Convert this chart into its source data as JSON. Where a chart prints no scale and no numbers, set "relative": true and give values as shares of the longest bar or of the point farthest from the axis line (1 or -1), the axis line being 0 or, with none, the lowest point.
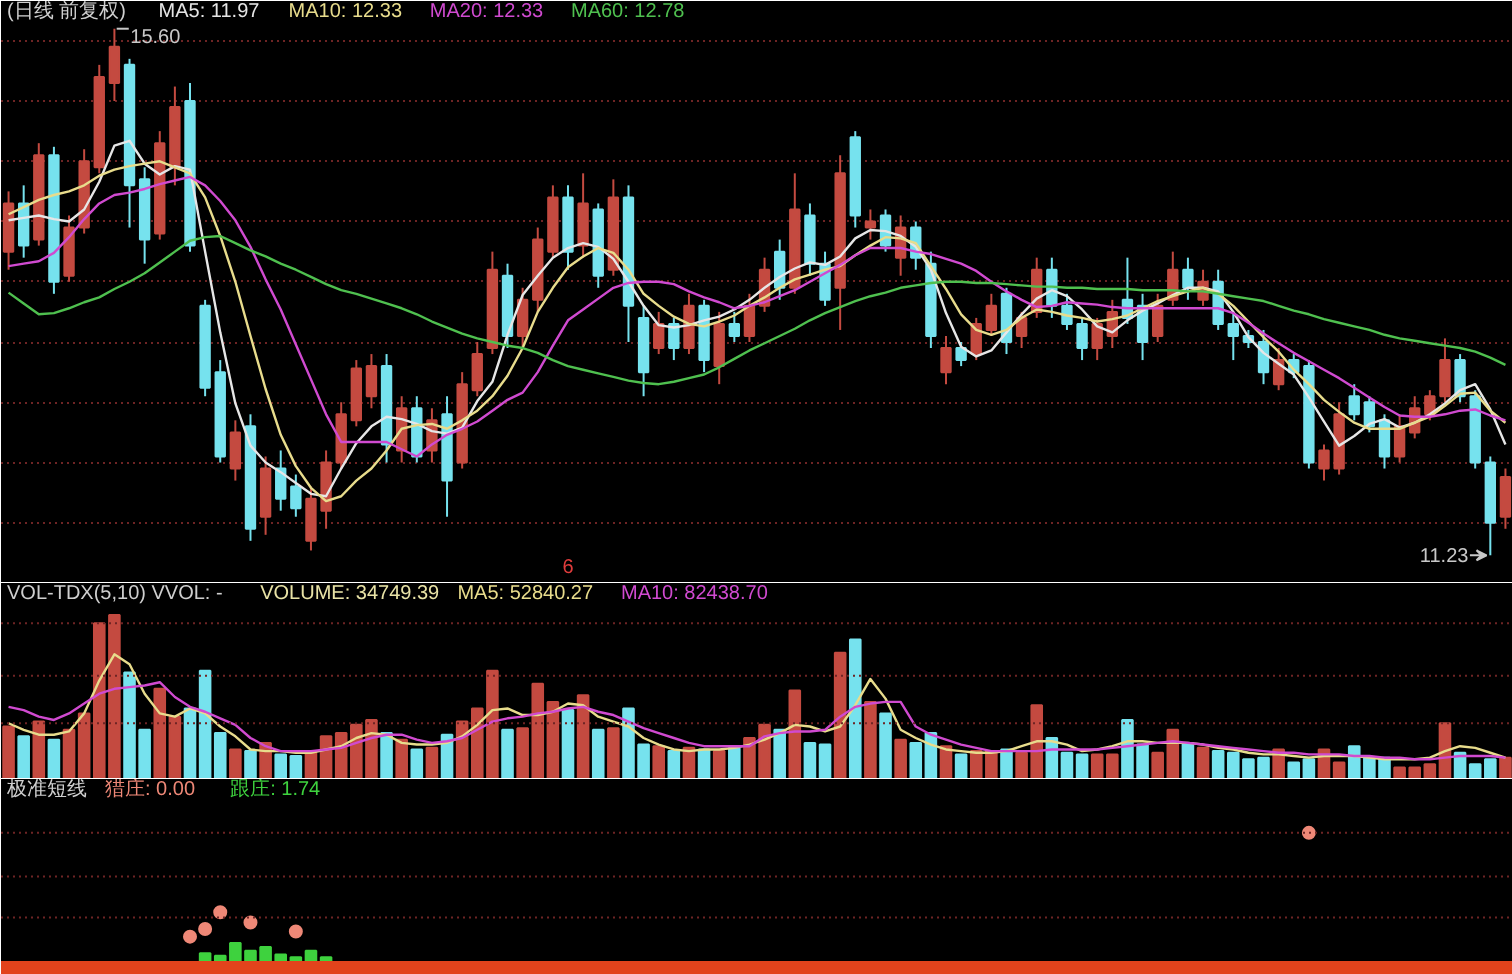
{
  "chart_data": [
    {
      "type": "candlestick",
      "title": "(日线 前复权)",
      "legend": "top left",
      "grid": "y",
      "tick_labels": "x",
      "categories": [
        null,
        null,
        null,
        null,
        null,
        null,
        null,
        null,
        null,
        null,
        null,
        null,
        null,
        null,
        null,
        null,
        null,
        null,
        null,
        null,
        null,
        null,
        null,
        null,
        null,
        null,
        null,
        null,
        null,
        null,
        null,
        null,
        null,
        null,
        null,
        null,
        null,
        "6",
        null,
        null,
        null,
        null,
        null,
        null,
        null,
        null,
        null,
        null,
        null,
        null,
        null,
        null,
        null,
        null,
        null,
        null,
        null,
        null,
        null,
        null,
        null,
        null,
        null,
        null,
        null,
        null,
        null,
        null,
        null,
        null,
        null,
        null,
        null,
        null,
        null,
        null,
        null,
        null,
        null,
        null,
        null,
        null,
        null,
        null,
        null,
        null,
        null,
        null,
        null,
        null,
        null,
        null,
        null,
        null,
        null,
        null,
        null,
        null,
        null,
        null
      ],
      "ohlc": [
        [
          13.75,
          14.25,
          13.6,
          14.15
        ],
        [
          14.15,
          14.3,
          13.7,
          13.8
        ],
        [
          13.85,
          14.65,
          13.8,
          14.55
        ],
        [
          14.55,
          14.62,
          13.4,
          13.5
        ],
        [
          13.55,
          14.05,
          13.5,
          13.95
        ],
        [
          13.95,
          14.6,
          13.9,
          14.5
        ],
        [
          14.45,
          15.3,
          14.4,
          15.2
        ],
        [
          15.15,
          15.6,
          15.0,
          15.45
        ],
        [
          15.3,
          15.35,
          13.95,
          14.3
        ],
        [
          14.35,
          14.45,
          13.65,
          13.85
        ],
        [
          13.9,
          14.75,
          13.85,
          14.65
        ],
        [
          14.45,
          15.12,
          14.3,
          14.95
        ],
        [
          15.0,
          15.15,
          13.75,
          13.8
        ],
        [
          13.3,
          13.35,
          12.55,
          12.62
        ],
        [
          12.75,
          12.85,
          12.0,
          12.05
        ],
        [
          11.95,
          12.35,
          11.85,
          12.25
        ],
        [
          12.3,
          12.4,
          11.35,
          11.45
        ],
        [
          11.55,
          12.05,
          11.4,
          11.95
        ],
        [
          11.95,
          12.1,
          11.6,
          11.7
        ],
        [
          11.8,
          11.9,
          11.55,
          11.62
        ],
        [
          11.35,
          11.8,
          11.27,
          11.7
        ],
        [
          11.6,
          12.1,
          11.45,
          12.0
        ],
        [
          12.0,
          12.5,
          11.95,
          12.4
        ],
        [
          12.35,
          12.85,
          12.3,
          12.78
        ],
        [
          12.55,
          12.9,
          12.45,
          12.8
        ],
        [
          12.8,
          12.9,
          12.0,
          12.15
        ],
        [
          12.1,
          12.55,
          12.0,
          12.45
        ],
        [
          12.45,
          12.55,
          12.0,
          12.05
        ],
        [
          12.1,
          12.45,
          12.0,
          12.35
        ],
        [
          12.4,
          12.55,
          11.55,
          11.85
        ],
        [
          12.0,
          12.75,
          11.95,
          12.65
        ],
        [
          12.6,
          13.0,
          12.55,
          12.9
        ],
        [
          12.95,
          13.75,
          12.9,
          13.6
        ],
        [
          13.55,
          13.65,
          12.95,
          13.05
        ],
        [
          13.05,
          13.45,
          12.95,
          13.35
        ],
        [
          13.35,
          13.95,
          13.25,
          13.85
        ],
        [
          13.75,
          14.3,
          13.7,
          14.2
        ],
        [
          14.2,
          14.3,
          13.6,
          13.75
        ],
        [
          13.8,
          14.4,
          13.7,
          14.15
        ],
        [
          14.1,
          14.15,
          13.45,
          13.55
        ],
        [
          13.6,
          14.35,
          13.55,
          14.2
        ],
        [
          14.2,
          14.3,
          13.0,
          13.3
        ],
        [
          13.2,
          13.3,
          12.55,
          12.75
        ],
        [
          12.95,
          13.25,
          12.9,
          13.15
        ],
        [
          13.15,
          13.2,
          12.85,
          12.95
        ],
        [
          12.95,
          13.4,
          12.9,
          13.3
        ],
        [
          13.3,
          13.35,
          12.75,
          12.85
        ],
        [
          12.8,
          13.25,
          12.65,
          13.15
        ],
        [
          13.15,
          13.25,
          13.0,
          13.05
        ],
        [
          13.05,
          13.4,
          13.0,
          13.3
        ],
        [
          13.3,
          13.7,
          13.25,
          13.6
        ],
        [
          13.75,
          13.85,
          13.35,
          13.45
        ],
        [
          13.45,
          14.4,
          13.4,
          14.1
        ],
        [
          14.05,
          14.15,
          13.55,
          13.65
        ],
        [
          13.65,
          13.75,
          13.3,
          13.35
        ],
        [
          13.45,
          14.55,
          13.1,
          14.4
        ],
        [
          14.7,
          14.75,
          13.95,
          14.05
        ],
        [
          13.95,
          14.1,
          13.85,
          14.0
        ],
        [
          14.05,
          14.1,
          13.75,
          13.8
        ],
        [
          13.7,
          14.05,
          13.55,
          13.95
        ],
        [
          13.95,
          14.0,
          13.6,
          13.7
        ],
        [
          13.65,
          13.75,
          12.95,
          13.05
        ],
        [
          12.75,
          13.05,
          12.65,
          12.95
        ],
        [
          12.95,
          13.0,
          12.8,
          12.85
        ],
        [
          12.9,
          13.2,
          12.85,
          13.15
        ],
        [
          13.1,
          13.4,
          13.05,
          13.3
        ],
        [
          13.4,
          13.45,
          12.9,
          13.0
        ],
        [
          13.05,
          13.25,
          12.95,
          13.2
        ],
        [
          13.25,
          13.7,
          13.2,
          13.6
        ],
        [
          13.6,
          13.7,
          13.2,
          13.3
        ],
        [
          13.3,
          13.4,
          13.1,
          13.15
        ],
        [
          13.15,
          13.2,
          12.85,
          12.95
        ],
        [
          12.95,
          13.2,
          12.85,
          13.15
        ],
        [
          13.05,
          13.35,
          12.95,
          13.25
        ],
        [
          13.35,
          13.7,
          13.15,
          13.2
        ],
        [
          13.3,
          13.4,
          12.85,
          13.0
        ],
        [
          13.05,
          13.4,
          13.0,
          13.3
        ],
        [
          13.35,
          13.75,
          13.3,
          13.6
        ],
        [
          13.6,
          13.7,
          13.35,
          13.45
        ],
        [
          13.35,
          13.6,
          13.3,
          13.5
        ],
        [
          13.5,
          13.6,
          13.1,
          13.15
        ],
        [
          13.15,
          13.25,
          12.85,
          13.05
        ],
        [
          13.05,
          13.1,
          12.95,
          13.0
        ],
        [
          13.0,
          13.1,
          12.65,
          12.75
        ],
        [
          12.65,
          12.95,
          12.6,
          12.85
        ],
        [
          12.85,
          12.9,
          12.7,
          12.75
        ],
        [
          12.8,
          12.85,
          11.95,
          12.0
        ],
        [
          11.95,
          12.15,
          11.85,
          12.1
        ],
        [
          11.95,
          12.5,
          11.9,
          12.4
        ],
        [
          12.55,
          12.65,
          12.35,
          12.4
        ],
        [
          12.5,
          12.55,
          12.25,
          12.3
        ],
        [
          12.35,
          12.4,
          11.95,
          12.05
        ],
        [
          12.05,
          12.4,
          12.0,
          12.3
        ],
        [
          12.25,
          12.55,
          12.2,
          12.45
        ],
        [
          12.4,
          12.6,
          12.35,
          12.55
        ],
        [
          12.55,
          13.03,
          12.5,
          12.85
        ],
        [
          12.85,
          12.9,
          12.5,
          12.55
        ],
        [
          12.55,
          12.6,
          11.95,
          12.0
        ],
        [
          12.0,
          12.05,
          11.23,
          11.5
        ],
        [
          11.55,
          11.95,
          11.45,
          11.88
        ]
      ],
      "colors": [
        "#c44a40",
        "#76e2ee",
        "#c44a40",
        "#76e2ee",
        "#c44a40",
        "#c44a40",
        "#c44a40",
        "#c44a40",
        "#76e2ee",
        "#76e2ee",
        "#c44a40",
        "#c44a40",
        "#76e2ee",
        "#76e2ee",
        "#76e2ee",
        "#c44a40",
        "#76e2ee",
        "#c44a40",
        "#76e2ee",
        "#76e2ee",
        "#c44a40",
        "#c44a40",
        "#c44a40",
        "#c44a40",
        "#c44a40",
        "#76e2ee",
        "#c44a40",
        "#76e2ee",
        "#c44a40",
        "#76e2ee",
        "#c44a40",
        "#c44a40",
        "#c44a40",
        "#76e2ee",
        "#c44a40",
        "#c44a40",
        "#c44a40",
        "#76e2ee",
        "#c44a40",
        "#76e2ee",
        "#c44a40",
        "#76e2ee",
        "#76e2ee",
        "#c44a40",
        "#76e2ee",
        "#c44a40",
        "#76e2ee",
        "#c44a40",
        "#76e2ee",
        "#c44a40",
        "#c44a40",
        "#76e2ee",
        "#c44a40",
        "#76e2ee",
        "#76e2ee",
        "#c44a40",
        "#76e2ee",
        "#c44a40",
        "#76e2ee",
        "#c44a40",
        "#76e2ee",
        "#76e2ee",
        "#c44a40",
        "#76e2ee",
        "#c44a40",
        "#c44a40",
        "#76e2ee",
        "#c44a40",
        "#c44a40",
        "#76e2ee",
        "#76e2ee",
        "#76e2ee",
        "#c44a40",
        "#c44a40",
        "#76e2ee",
        "#76e2ee",
        "#c44a40",
        "#c44a40",
        "#76e2ee",
        "#c44a40",
        "#76e2ee",
        "#76e2ee",
        "#76e2ee",
        "#76e2ee",
        "#c44a40",
        "#76e2ee",
        "#76e2ee",
        "#c44a40",
        "#c44a40",
        "#76e2ee",
        "#76e2ee",
        "#76e2ee",
        "#c44a40",
        "#c44a40",
        "#c44a40",
        "#c44a40",
        "#76e2ee",
        "#76e2ee",
        "#76e2ee",
        "#c44a40"
      ],
      "series": [
        {
          "name": "MA5: 11.97",
          "type": "line",
          "color": "#e6e6e6",
          "values": [
            14.01,
            14.03,
            14.05,
            14.02,
            14.0,
            14.1,
            14.33,
            14.63,
            14.67,
            14.48,
            14.39,
            14.46,
            14.43,
            13.75,
            13.08,
            12.49,
            12.14,
            12.0,
            11.92,
            11.83,
            11.74,
            11.72,
            11.95,
            12.16,
            12.3,
            12.38,
            12.36,
            12.32,
            12.26,
            12.24,
            12.29,
            12.51,
            12.67,
            13.06,
            13.39,
            13.55,
            13.7,
            13.78,
            13.82,
            13.79,
            13.69,
            13.5,
            13.3,
            13.14,
            13.12,
            13.14,
            13.18,
            13.21,
            13.27,
            13.35,
            13.45,
            13.54,
            13.61,
            13.66,
            13.64,
            13.71,
            13.86,
            13.93,
            13.92,
            13.88,
            13.79,
            13.6,
            13.24,
            12.96,
            12.88,
            12.93,
            13.08,
            13.23,
            13.36,
            13.43,
            13.38,
            13.27,
            13.13,
            13.08,
            13.18,
            13.26,
            13.32,
            13.39,
            13.45,
            13.45,
            13.42,
            13.25,
            13.04,
            12.91,
            12.82,
            12.73,
            12.54,
            12.34,
            12.14,
            12.22,
            12.32,
            12.36,
            12.29,
            12.33,
            12.4,
            12.49,
            12.6,
            12.65,
            12.44,
            12.15
          ]
        },
        {
          "name": "MA10: 12.33",
          "type": "line",
          "color": "#e8dc8c",
          "values": [
            14.06,
            14.12,
            14.18,
            14.22,
            14.25,
            14.3,
            14.38,
            14.43,
            14.46,
            14.48,
            14.5,
            14.45,
            14.4,
            14.2,
            13.88,
            13.5,
            13.05,
            12.61,
            12.23,
            11.97,
            11.79,
            11.68,
            11.72,
            11.85,
            11.95,
            12.1,
            12.28,
            12.31,
            12.32,
            12.28,
            12.35,
            12.43,
            12.55,
            12.72,
            12.95,
            13.25,
            13.45,
            13.62,
            13.71,
            13.78,
            13.74,
            13.6,
            13.4,
            13.3,
            13.21,
            13.15,
            13.13,
            13.17,
            13.22,
            13.3,
            13.37,
            13.45,
            13.52,
            13.56,
            13.6,
            13.63,
            13.72,
            13.8,
            13.87,
            13.86,
            13.82,
            13.63,
            13.44,
            13.23,
            13.1,
            13.06,
            13.1,
            13.2,
            13.27,
            13.25,
            13.22,
            13.2,
            13.17,
            13.19,
            13.22,
            13.28,
            13.34,
            13.38,
            13.42,
            13.45,
            13.4,
            13.3,
            13.17,
            13.04,
            12.92,
            12.77,
            12.65,
            12.52,
            12.42,
            12.33,
            12.28,
            12.28,
            12.28,
            12.33,
            12.38,
            12.47,
            12.57,
            12.58,
            12.43,
            12.33
          ]
        },
        {
          "name": "MA20: 12.33",
          "type": "line",
          "color": "#d04ad0",
          "values": [
            13.63,
            13.65,
            13.67,
            13.74,
            13.87,
            14.02,
            14.15,
            14.22,
            14.24,
            14.27,
            14.31,
            14.34,
            14.37,
            14.3,
            14.17,
            14.01,
            13.79,
            13.52,
            13.27,
            12.98,
            12.69,
            12.4,
            12.17,
            12.17,
            12.17,
            12.17,
            12.11,
            12.05,
            12.15,
            12.23,
            12.28,
            12.34,
            12.43,
            12.52,
            12.58,
            12.75,
            12.97,
            13.18,
            13.27,
            13.36,
            13.45,
            13.49,
            13.5,
            13.5,
            13.48,
            13.42,
            13.37,
            13.33,
            13.28,
            13.3,
            13.33,
            13.38,
            13.43,
            13.5,
            13.57,
            13.64,
            13.72,
            13.78,
            13.78,
            13.78,
            13.75,
            13.73,
            13.69,
            13.65,
            13.59,
            13.5,
            13.42,
            13.35,
            13.29,
            13.3,
            13.33,
            13.32,
            13.31,
            13.29,
            13.28,
            13.28,
            13.28,
            13.28,
            13.28,
            13.28,
            13.28,
            13.24,
            13.16,
            13.07,
            12.99,
            12.91,
            12.84,
            12.77,
            12.7,
            12.62,
            12.54,
            12.46,
            12.39,
            12.38,
            12.38,
            12.4,
            12.43,
            12.44,
            12.39,
            12.35
          ]
        },
        {
          "name": "MA60: 12.78",
          "type": "line",
          "color": "#4fc04f",
          "values": [
            13.41,
            13.32,
            13.23,
            13.24,
            13.28,
            13.33,
            13.37,
            13.44,
            13.5,
            13.57,
            13.66,
            13.75,
            13.84,
            13.87,
            13.88,
            13.82,
            13.76,
            13.71,
            13.65,
            13.6,
            13.54,
            13.48,
            13.43,
            13.4,
            13.36,
            13.32,
            13.28,
            13.23,
            13.17,
            13.12,
            13.07,
            13.03,
            13.0,
            12.97,
            12.95,
            12.91,
            12.85,
            12.8,
            12.77,
            12.74,
            12.71,
            12.68,
            12.66,
            12.65,
            12.67,
            12.7,
            12.73,
            12.79,
            12.86,
            12.93,
            12.99,
            13.05,
            13.11,
            13.18,
            13.24,
            13.29,
            13.34,
            13.38,
            13.41,
            13.45,
            13.47,
            13.49,
            13.5,
            13.5,
            13.49,
            13.49,
            13.48,
            13.47,
            13.46,
            13.46,
            13.45,
            13.45,
            13.44,
            13.44,
            13.44,
            13.43,
            13.43,
            13.43,
            13.42,
            13.42,
            13.4,
            13.38,
            13.36,
            13.34,
            13.3,
            13.26,
            13.23,
            13.19,
            13.16,
            13.13,
            13.1,
            13.06,
            13.03,
            13.01,
            12.99,
            12.97,
            12.95,
            12.92,
            12.87,
            12.81
          ]
        }
      ],
      "ylim": [
        11.0,
        15.83
      ],
      "yticks": [
        {
          "value": 11.5,
          "label": null
        },
        {
          "value": 12.0,
          "label": null
        },
        {
          "value": 12.5,
          "label": null
        },
        {
          "value": 13.0,
          "label": null
        },
        {
          "value": 13.5,
          "label": null
        },
        {
          "value": 14.0,
          "label": null
        },
        {
          "value": 14.5,
          "label": null
        },
        {
          "value": 15.0,
          "label": null
        },
        {
          "value": 15.5,
          "label": null
        }
      ],
      "annotations": [
        "15.60",
        "11.23"
      ]
    },
    {
      "type": "bar",
      "title": "VOL-TDX(5,10) VVOL: -",
      "legend": "top left",
      "tick_labels": false,
      "relative": true,
      "annotations": [
        "VOLUME: 34749.39"
      ],
      "ref_lines": [
        {
          "axis": "y",
          "value": 0.34,
          "label": null,
          "color": "#6e2424",
          "line_style": "dotted"
        },
        {
          "axis": "y",
          "value": 0.63,
          "label": null,
          "color": "#6e2424",
          "line_style": "dotted"
        },
        {
          "axis": "y",
          "value": 0.95,
          "label": null,
          "color": "#6e2424",
          "line_style": "dotted"
        }
      ],
      "categories": [
        null,
        null,
        null,
        null,
        null,
        null,
        null,
        null,
        null,
        null,
        null,
        null,
        null,
        null,
        null,
        null,
        null,
        null,
        null,
        null,
        null,
        null,
        null,
        null,
        null,
        null,
        null,
        null,
        null,
        null,
        null,
        null,
        null,
        null,
        null,
        null,
        null,
        null,
        null,
        null,
        null,
        null,
        null,
        null,
        null,
        null,
        null,
        null,
        null,
        null,
        null,
        null,
        null,
        null,
        null,
        null,
        null,
        null,
        null,
        null,
        null,
        null,
        null,
        null,
        null,
        null,
        null,
        null,
        null,
        null,
        null,
        null,
        null,
        null,
        null,
        null,
        null,
        null,
        null,
        null,
        null,
        null,
        null,
        null,
        null,
        null,
        null,
        null,
        null,
        null,
        null,
        null,
        null,
        null,
        null,
        null,
        null,
        null,
        null,
        null
      ],
      "series": [
        {
          "type": "bar",
          "values": [
            0.32,
            0.26,
            0.35,
            0.24,
            0.3,
            0.4,
            0.95,
            1.0,
            0.65,
            0.3,
            0.55,
            0.38,
            0.43,
            0.66,
            0.28,
            0.18,
            0.17,
            0.22,
            0.15,
            0.14,
            0.16,
            0.26,
            0.28,
            0.33,
            0.36,
            0.28,
            0.24,
            0.18,
            0.19,
            0.27,
            0.35,
            0.43,
            0.66,
            0.3,
            0.31,
            0.58,
            0.47,
            0.42,
            0.51,
            0.3,
            0.31,
            0.43,
            0.21,
            0.2,
            0.17,
            0.19,
            0.18,
            0.17,
            0.19,
            0.25,
            0.33,
            0.3,
            0.54,
            0.22,
            0.21,
            0.77,
            0.85,
            0.47,
            0.4,
            0.24,
            0.22,
            0.28,
            0.2,
            0.15,
            0.17,
            0.17,
            0.18,
            0.16,
            0.45,
            0.25,
            0.16,
            0.15,
            0.15,
            0.15,
            0.36,
            0.21,
            0.16,
            0.3,
            0.22,
            0.19,
            0.17,
            0.16,
            0.12,
            0.13,
            0.18,
            0.1,
            0.12,
            0.18,
            0.1,
            0.2,
            0.13,
            0.13,
            0.07,
            0.07,
            0.09,
            0.34,
            0.16,
            0.09,
            0.12,
            0.13
          ],
          "colors": [
            "#c44a40",
            "#76e2ee",
            "#c44a40",
            "#76e2ee",
            "#c44a40",
            "#c44a40",
            "#c44a40",
            "#c44a40",
            "#76e2ee",
            "#76e2ee",
            "#c44a40",
            "#c44a40",
            "#76e2ee",
            "#76e2ee",
            "#76e2ee",
            "#c44a40",
            "#76e2ee",
            "#c44a40",
            "#76e2ee",
            "#76e2ee",
            "#c44a40",
            "#c44a40",
            "#c44a40",
            "#c44a40",
            "#c44a40",
            "#76e2ee",
            "#c44a40",
            "#76e2ee",
            "#c44a40",
            "#76e2ee",
            "#c44a40",
            "#c44a40",
            "#c44a40",
            "#76e2ee",
            "#c44a40",
            "#c44a40",
            "#c44a40",
            "#76e2ee",
            "#c44a40",
            "#76e2ee",
            "#c44a40",
            "#76e2ee",
            "#76e2ee",
            "#c44a40",
            "#76e2ee",
            "#c44a40",
            "#76e2ee",
            "#c44a40",
            "#76e2ee",
            "#c44a40",
            "#c44a40",
            "#76e2ee",
            "#c44a40",
            "#76e2ee",
            "#76e2ee",
            "#c44a40",
            "#76e2ee",
            "#c44a40",
            "#76e2ee",
            "#c44a40",
            "#76e2ee",
            "#76e2ee",
            "#c44a40",
            "#76e2ee",
            "#c44a40",
            "#c44a40",
            "#76e2ee",
            "#c44a40",
            "#c44a40",
            "#76e2ee",
            "#76e2ee",
            "#76e2ee",
            "#c44a40",
            "#c44a40",
            "#76e2ee",
            "#76e2ee",
            "#c44a40",
            "#c44a40",
            "#76e2ee",
            "#c44a40",
            "#76e2ee",
            "#76e2ee",
            "#76e2ee",
            "#76e2ee",
            "#c44a40",
            "#76e2ee",
            "#76e2ee",
            "#c44a40",
            "#c44a40",
            "#76e2ee",
            "#76e2ee",
            "#76e2ee",
            "#c44a40",
            "#c44a40",
            "#c44a40",
            "#c44a40",
            "#76e2ee",
            "#76e2ee",
            "#76e2ee",
            "#c44a40"
          ]
        },
        {
          "name": "MA5: 52840.27",
          "type": "line",
          "color": "#e8dc8c",
          "values": [
            0.34,
            0.3,
            0.27,
            0.27,
            0.29,
            0.4,
            0.6,
            0.76,
            0.7,
            0.52,
            0.4,
            0.38,
            0.43,
            0.4,
            0.32,
            0.26,
            0.18,
            0.17,
            0.17,
            0.16,
            0.16,
            0.18,
            0.2,
            0.25,
            0.28,
            0.27,
            0.22,
            0.21,
            0.21,
            0.22,
            0.26,
            0.33,
            0.42,
            0.43,
            0.39,
            0.39,
            0.41,
            0.46,
            0.45,
            0.38,
            0.35,
            0.32,
            0.25,
            0.21,
            0.18,
            0.17,
            0.18,
            0.18,
            0.19,
            0.21,
            0.24,
            0.28,
            0.33,
            0.32,
            0.29,
            0.32,
            0.45,
            0.61,
            0.49,
            0.3,
            0.25,
            0.21,
            0.18,
            0.17,
            0.16,
            0.16,
            0.17,
            0.2,
            0.23,
            0.23,
            0.21,
            0.17,
            0.18,
            0.2,
            0.23,
            0.23,
            0.22,
            0.22,
            0.22,
            0.21,
            0.19,
            0.18,
            0.16,
            0.15,
            0.15,
            0.14,
            0.13,
            0.14,
            0.14,
            0.14,
            0.13,
            0.12,
            0.12,
            0.12,
            0.13,
            0.17,
            0.2,
            0.19,
            0.16,
            0.13
          ]
        },
        {
          "name": "MA10: 82438.70",
          "type": "line",
          "color": "#d04ad0",
          "values": [
            0.44,
            0.42,
            0.38,
            0.36,
            0.4,
            0.46,
            0.52,
            0.55,
            0.56,
            0.57,
            0.59,
            0.5,
            0.44,
            0.41,
            0.37,
            0.33,
            0.25,
            0.2,
            0.17,
            0.17,
            0.17,
            0.18,
            0.19,
            0.22,
            0.25,
            0.27,
            0.27,
            0.24,
            0.22,
            0.23,
            0.25,
            0.3,
            0.35,
            0.37,
            0.38,
            0.4,
            0.41,
            0.43,
            0.44,
            0.41,
            0.39,
            0.35,
            0.31,
            0.28,
            0.25,
            0.22,
            0.2,
            0.2,
            0.2,
            0.2,
            0.26,
            0.28,
            0.29,
            0.29,
            0.3,
            0.38,
            0.44,
            0.46,
            0.47,
            0.47,
            0.32,
            0.27,
            0.24,
            0.21,
            0.19,
            0.17,
            0.17,
            0.17,
            0.17,
            0.18,
            0.18,
            0.18,
            0.18,
            0.19,
            0.2,
            0.21,
            0.22,
            0.23,
            0.22,
            0.21,
            0.2,
            0.19,
            0.18,
            0.17,
            0.16,
            0.16,
            0.15,
            0.15,
            0.15,
            0.14,
            0.14,
            0.13,
            0.13,
            0.12,
            0.12,
            0.13,
            0.14,
            0.14,
            0.14,
            0.13
          ]
        }
      ]
    },
    {
      "type": "bar",
      "title": "极准短线",
      "legend": "top left",
      "tick_labels": false,
      "relative": true,
      "marker": "circle",
      "ref_lines": [
        {
          "axis": "y",
          "value": 0.34,
          "label": null,
          "color": "#6e2424",
          "line_style": "dotted"
        },
        {
          "axis": "y",
          "value": 0.66,
          "label": null,
          "color": "#6e2424",
          "line_style": "dotted"
        },
        {
          "axis": "y",
          "value": 1.0,
          "label": null,
          "color": "#6e2424",
          "line_style": "dotted"
        }
      ],
      "categories": [
        null,
        null,
        null,
        null,
        null,
        null,
        null,
        null,
        null,
        null,
        null,
        null,
        null,
        null,
        null,
        null,
        null,
        null,
        null,
        null,
        null,
        null,
        null,
        null,
        null,
        null,
        null,
        null,
        null,
        null,
        null,
        null,
        null,
        null,
        null,
        null,
        null,
        null,
        null,
        null,
        null,
        null,
        null,
        null,
        null,
        null,
        null,
        null,
        null,
        null,
        null,
        null,
        null,
        null,
        null,
        null,
        null,
        null,
        null,
        null,
        null,
        null,
        null,
        null,
        null,
        null,
        null,
        null,
        null,
        null,
        null,
        null,
        null,
        null,
        null,
        null,
        null,
        null,
        null,
        null,
        null,
        null,
        null,
        null,
        null,
        null,
        null,
        null,
        null,
        null,
        null,
        null,
        null,
        null,
        null,
        null,
        null,
        null,
        null,
        null
      ],
      "series": [
        {
          "name": "猎庄: 0.00",
          "type": "scatter",
          "color": "#ee8877",
          "values": [
            null,
            null,
            null,
            null,
            null,
            null,
            null,
            null,
            null,
            null,
            null,
            null,
            0.19,
            0.25,
            0.38,
            null,
            0.3,
            null,
            null,
            0.23,
            null,
            null,
            null,
            null,
            null,
            null,
            null,
            null,
            null,
            null,
            null,
            null,
            null,
            null,
            null,
            null,
            null,
            null,
            null,
            null,
            null,
            null,
            null,
            null,
            null,
            null,
            null,
            null,
            null,
            null,
            null,
            null,
            null,
            null,
            null,
            null,
            null,
            null,
            null,
            null,
            null,
            null,
            null,
            null,
            null,
            null,
            null,
            null,
            null,
            null,
            null,
            null,
            null,
            null,
            null,
            null,
            null,
            null,
            null,
            null,
            null,
            null,
            null,
            null,
            null,
            null,
            1.0,
            null,
            null,
            null,
            null,
            null,
            null,
            null,
            null,
            null,
            null,
            null,
            null,
            null
          ]
        },
        {
          "name": "跟庄: 1.74",
          "type": "bar",
          "color": "#3ed23e",
          "values": [
            null,
            null,
            null,
            null,
            null,
            null,
            null,
            null,
            null,
            null,
            null,
            null,
            null,
            0.06,
            0.04,
            0.14,
            0.08,
            0.11,
            0.05,
            0.03,
            0.08,
            0.03,
            null,
            null,
            null,
            null,
            null,
            null,
            null,
            null,
            null,
            null,
            null,
            null,
            null,
            null,
            null,
            null,
            null,
            null,
            null,
            null,
            null,
            null,
            null,
            null,
            null,
            null,
            null,
            null,
            null,
            null,
            null,
            null,
            null,
            null,
            null,
            null,
            null,
            null,
            null,
            null,
            null,
            null,
            null,
            null,
            null,
            null,
            null,
            null,
            null,
            null,
            null,
            null,
            null,
            null,
            null,
            null,
            null,
            null,
            null,
            null,
            null,
            null,
            null,
            null,
            null,
            null,
            null,
            null,
            null,
            null,
            null,
            null,
            null,
            null,
            null,
            null,
            null,
            null
          ]
        }
      ]
    }
  ]
}
